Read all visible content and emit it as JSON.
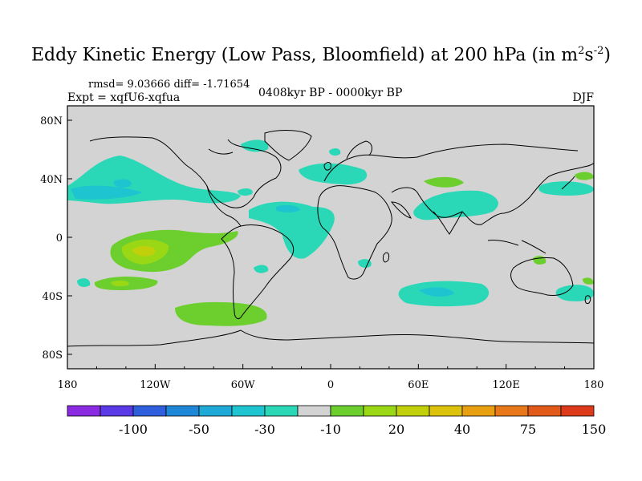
{
  "header": {
    "title_main": "Eddy Kinetic Energy (Low Pass, Bloomfield) at 200 hPa (in m",
    "title_sup1": "2",
    "title_s": "s",
    "title_sup2": "-2",
    "title_close": ")",
    "stats": "rmsd= 9.03666 diff= -1.71654",
    "expt": "Expt = xqfU6-xqfua",
    "period": "0408kyr BP - 0000kyr BP",
    "season": "DJF"
  },
  "map": {
    "background_color": "#d3d3d3",
    "lon_labels": [
      "180",
      "120W",
      "60W",
      "0",
      "60E",
      "120E",
      "180"
    ],
    "lat_labels": [
      "80N",
      "40N",
      "0",
      "40S",
      "80S"
    ],
    "contours": [
      {
        "name": "north-pacific-anomaly",
        "level": "-10"
      },
      {
        "name": "hawaii-anomaly",
        "level": "-20"
      },
      {
        "name": "north-atlantic-anomaly",
        "level": "-10"
      },
      {
        "name": "saharan-anomaly",
        "level": "-10"
      },
      {
        "name": "tibet-anomaly",
        "level": "-10"
      },
      {
        "name": "east-asia-anomaly",
        "level": "20"
      },
      {
        "name": "south-pacific-anomaly",
        "level": "30"
      },
      {
        "name": "south-atlantic-anomaly",
        "level": "-10"
      },
      {
        "name": "southern-indian-anomaly",
        "level": "-10"
      }
    ]
  },
  "colorbar": {
    "colors": [
      "#8a2be2",
      "#5a3ae6",
      "#2f5fdc",
      "#1f87d8",
      "#1ea9d6",
      "#1ec4cf",
      "#2ad8b8",
      "#d3d3d3",
      "#6ccf2e",
      "#9ad816",
      "#c2d00c",
      "#dcc20a",
      "#e9a010",
      "#e8781a",
      "#e25a1a",
      "#dc3a1a"
    ],
    "labels": [
      "-100",
      "-50",
      "-30",
      "-10",
      "20",
      "40",
      "75",
      "150"
    ]
  }
}
